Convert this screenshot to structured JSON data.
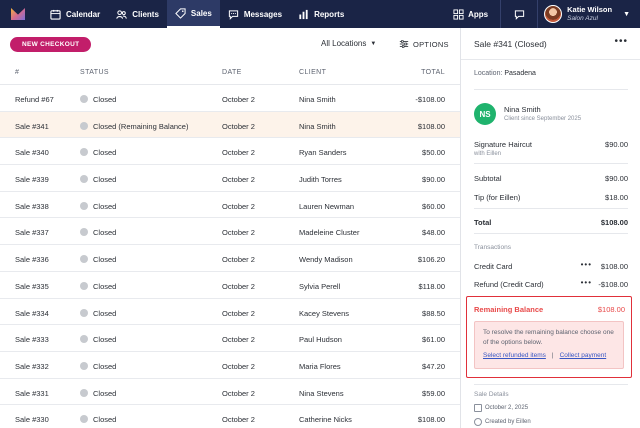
{
  "nav": {
    "items": [
      {
        "label": "Calendar",
        "icon": "calendar-icon"
      },
      {
        "label": "Clients",
        "icon": "clients-icon"
      },
      {
        "label": "Sales",
        "icon": "sales-tag-icon",
        "active": true
      },
      {
        "label": "Messages",
        "icon": "messages-icon"
      },
      {
        "label": "Reports",
        "icon": "reports-icon"
      }
    ],
    "apps_label": "Apps",
    "user_name": "Katie Wilson",
    "user_location": "Salon Azul"
  },
  "toolbar": {
    "new_checkout": "NEW CHECKOUT",
    "location_filter": "All Locations",
    "options": "OPTIONS"
  },
  "table": {
    "headers": {
      "num": "#",
      "status": "STATUS",
      "date": "DATE",
      "client": "CLIENT",
      "total": "TOTAL"
    },
    "rows": [
      {
        "num": "Refund #67",
        "status": "Closed",
        "date": "October 2",
        "client": "Nina Smith",
        "total": "-$108.00"
      },
      {
        "num": "Sale #341",
        "status": "Closed (Remaining Balance)",
        "date": "October 2",
        "client": "Nina Smith",
        "total": "$108.00",
        "selected": true
      },
      {
        "num": "Sale #340",
        "status": "Closed",
        "date": "October 2",
        "client": "Ryan Sanders",
        "total": "$50.00"
      },
      {
        "num": "Sale #339",
        "status": "Closed",
        "date": "October 2",
        "client": "Judith Torres",
        "total": "$90.00"
      },
      {
        "num": "Sale #338",
        "status": "Closed",
        "date": "October 2",
        "client": "Lauren Newman",
        "total": "$60.00"
      },
      {
        "num": "Sale #337",
        "status": "Closed",
        "date": "October 2",
        "client": "Madeleine Cluster",
        "total": "$48.00"
      },
      {
        "num": "Sale #336",
        "status": "Closed",
        "date": "October 2",
        "client": "Wendy Madison",
        "total": "$106.20"
      },
      {
        "num": "Sale #335",
        "status": "Closed",
        "date": "October 2",
        "client": "Sylvia Perell",
        "total": "$118.00"
      },
      {
        "num": "Sale #334",
        "status": "Closed",
        "date": "October 2",
        "client": "Kacey Stevens",
        "total": "$88.50"
      },
      {
        "num": "Sale #333",
        "status": "Closed",
        "date": "October 2",
        "client": "Paul Hudson",
        "total": "$61.00"
      },
      {
        "num": "Sale #332",
        "status": "Closed",
        "date": "October 2",
        "client": "Maria Flores",
        "total": "$47.20"
      },
      {
        "num": "Sale #331",
        "status": "Closed",
        "date": "October 2",
        "client": "Nina Stevens",
        "total": "$59.00"
      },
      {
        "num": "Sale #330",
        "status": "Closed",
        "date": "October 2",
        "client": "Catherine Nicks",
        "total": "$108.00"
      }
    ]
  },
  "panel": {
    "title": "Sale #341 (Closed)",
    "location_label": "Location:",
    "location_value": "Pasadena",
    "client_initials": "NS",
    "client_name": "Nina Smith",
    "client_since": "Client since September 2025",
    "service_name": "Signature Haircut",
    "service_staff": "with Eillen",
    "service_price": "$90.00",
    "subtotal_label": "Subtotal",
    "subtotal_value": "$90.00",
    "tip_label": "Tip (for Eillen)",
    "tip_value": "$18.00",
    "total_label": "Total",
    "total_value": "$108.00",
    "transactions_label": "Transactions",
    "transactions": [
      {
        "label": "Credit Card",
        "value": "$108.00"
      },
      {
        "label": "Refund (Credit Card)",
        "value": "-$108.00"
      }
    ],
    "remaining_label": "Remaining Balance",
    "remaining_value": "$108.00",
    "remaining_message": "To resolve the remaining balance choose one of the options below.",
    "link_refunded": "Select refunded items",
    "link_separator": "|",
    "link_collect": "Collect payment",
    "details_label": "Sale Details",
    "details_date": "October 2, 2025",
    "details_created": "Created by Eillen"
  },
  "colors": {
    "nav_bg": "#1a2446",
    "accent": "#c21e6a",
    "client_avatar": "#1fb36d",
    "alert": "#e0303a"
  }
}
